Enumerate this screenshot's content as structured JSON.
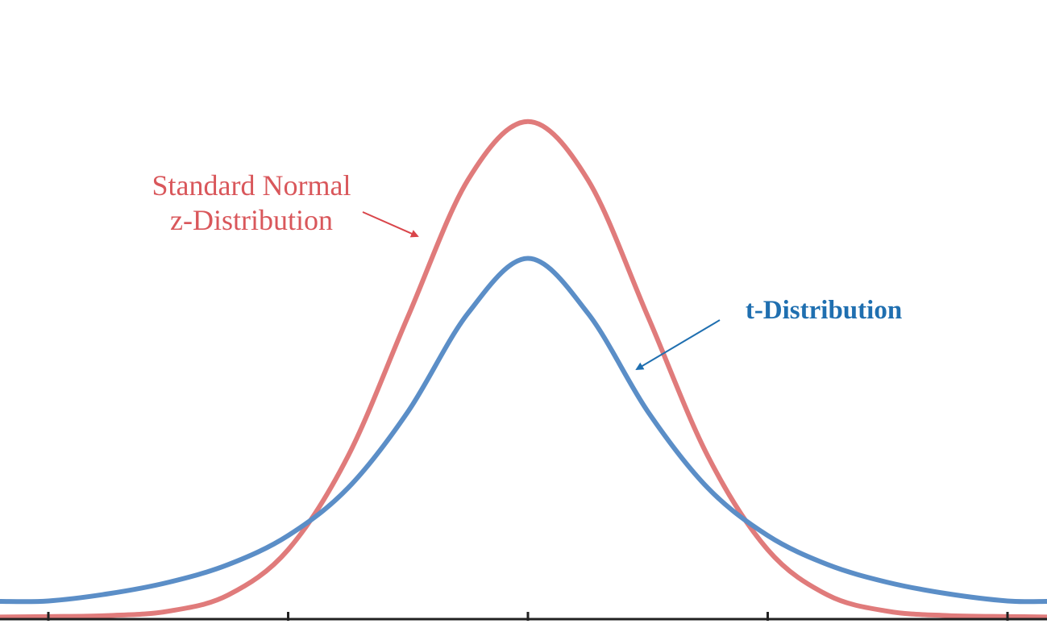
{
  "chart_data": {
    "type": "line",
    "title": "",
    "xlabel": "",
    "ylabel": "",
    "xlim": [
      -4,
      4
    ],
    "ylim": [
      0,
      0.43
    ],
    "x_ticks": [
      -4,
      -2,
      0,
      2,
      4
    ],
    "grid": false,
    "series": [
      {
        "name": "Standard Normal z-Distribution",
        "label_lines": [
          "Standard Normal",
          "z-Distribution"
        ],
        "color": "#e07b7b",
        "x": [
          -4.0,
          -3.5,
          -3.0,
          -2.5,
          -2.0,
          -1.5,
          -1.0,
          -0.5,
          0.0,
          0.5,
          1.0,
          1.5,
          2.0,
          2.5,
          3.0,
          3.5,
          4.0
        ],
        "y": [
          0.0001,
          0.0009,
          0.0044,
          0.0175,
          0.054,
          0.1295,
          0.242,
          0.352,
          0.399,
          0.352,
          0.242,
          0.1295,
          0.054,
          0.0175,
          0.0044,
          0.0009,
          0.0001
        ]
      },
      {
        "name": "t-Distribution",
        "label_lines": [
          "t-Distribution"
        ],
        "color": "#5b8ec7",
        "x": [
          -4.0,
          -3.5,
          -3.0,
          -2.5,
          -2.0,
          -1.5,
          -1.0,
          -0.5,
          0.0,
          0.5,
          1.0,
          1.5,
          2.0,
          2.5,
          3.0,
          3.5,
          4.0
        ],
        "y": [
          0.0127,
          0.0185,
          0.0277,
          0.042,
          0.0654,
          0.1038,
          0.1653,
          0.2445,
          0.2887,
          0.2445,
          0.1653,
          0.1038,
          0.0654,
          0.042,
          0.0277,
          0.0185,
          0.0127
        ]
      }
    ]
  }
}
